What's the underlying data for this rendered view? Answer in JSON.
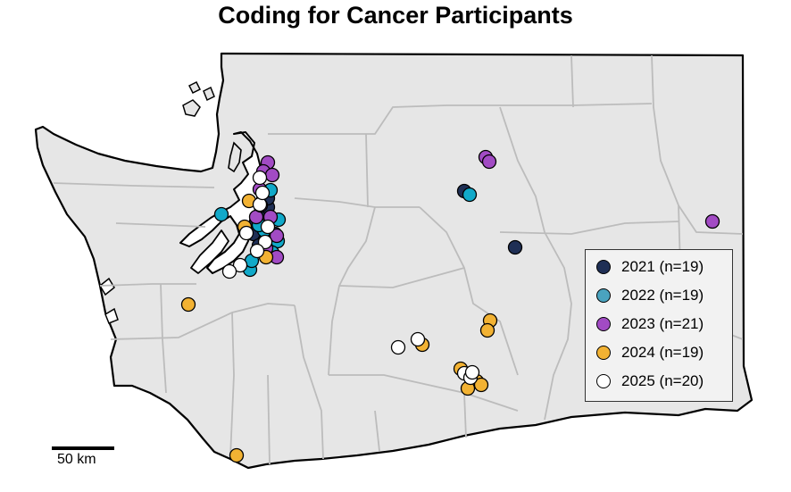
{
  "title": "Coding for Cancer Participants",
  "scale_bar": {
    "label": "50 km"
  },
  "colors": {
    "land": "#e6e6e6",
    "county_border": "#bcbcbc",
    "state_border": "#000000"
  },
  "legend": {
    "items": [
      {
        "label": "2021 (n=19)",
        "color": "#1f2f55"
      },
      {
        "label": "2022 (n=19)",
        "color": "#4aa3bf"
      },
      {
        "label": "2023 (n=21)",
        "color": "#a24bc4"
      },
      {
        "label": "2024 (n=19)",
        "color": "#f2b233"
      },
      {
        "label": "2025 (n=20)",
        "color": "#ffffff"
      }
    ]
  },
  "marker_colors": {
    "2021": "#1f2f55",
    "2022": "#11a9c9",
    "2023": "#a24bc4",
    "2024": "#f2b233",
    "2025": "#ffffff"
  }
}
